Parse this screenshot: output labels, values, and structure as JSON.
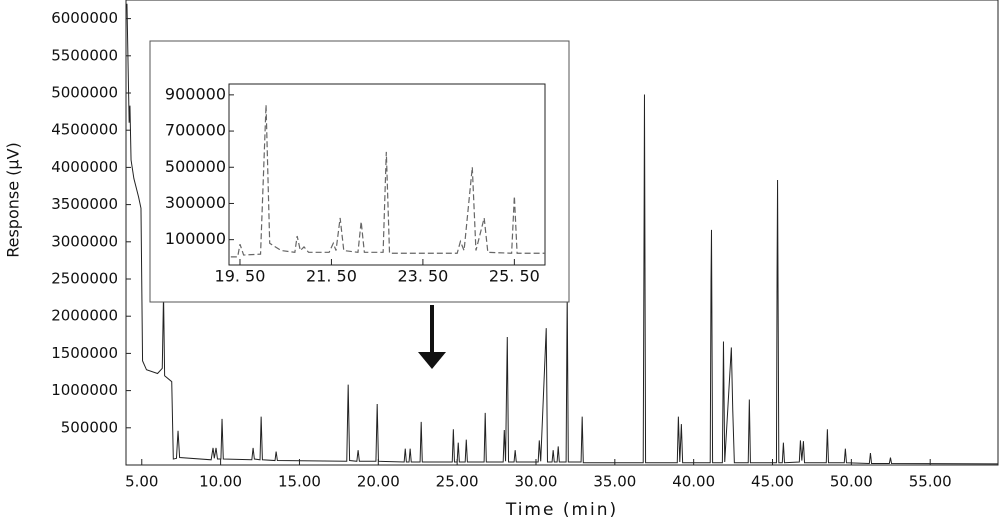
{
  "chart_data": [
    {
      "type": "line",
      "xlabel": "Time (min)",
      "ylabel": "Response (μV)",
      "xlim": [
        4,
        59.3
      ],
      "ylim": [
        0,
        6250000
      ],
      "xticks": [
        {
          "value": 5,
          "label": "5.00"
        },
        {
          "value": 10,
          "label": "10.00"
        },
        {
          "value": 15,
          "label": "15.00"
        },
        {
          "value": 20,
          "label": "20.00"
        },
        {
          "value": 25,
          "label": "25.00"
        },
        {
          "value": 30,
          "label": "30.00"
        },
        {
          "value": 35,
          "label": "35.00"
        },
        {
          "value": 40,
          "label": "40.00"
        },
        {
          "value": 45,
          "label": "45.00"
        },
        {
          "value": 50,
          "label": "50.00"
        },
        {
          "value": 55,
          "label": "55.00"
        }
      ],
      "yticks": [
        500000,
        1000000,
        1500000,
        2000000,
        2500000,
        3000000,
        3500000,
        4000000,
        4500000,
        5000000,
        5500000,
        6000000
      ],
      "grid": false,
      "series": [
        {
          "color": "#222222",
          "x": [
            4.06,
            4.2,
            4.25,
            4.32,
            4.5,
            4.8,
            4.95,
            5.05,
            5.3,
            6.0,
            6.3,
            6.38,
            6.45,
            6.9,
            7.0,
            7.2,
            7.3,
            7.4,
            9.4,
            9.52,
            9.6,
            9.71,
            9.8,
            10.02,
            10.09,
            10.17,
            11.98,
            12.06,
            12.14,
            12.5,
            12.57,
            12.65,
            13.45,
            13.52,
            13.6,
            18.0,
            18.09,
            18.18,
            18.64,
            18.72,
            18.8,
            19.85,
            19.93,
            20.01,
            21.64,
            21.71,
            21.78,
            21.95,
            22.02,
            22.09,
            22.65,
            22.72,
            22.79,
            24.69,
            24.76,
            24.83,
            25.0,
            25.07,
            25.14,
            25.51,
            25.58,
            25.65,
            26.71,
            26.78,
            26.85,
            27.92,
            27.99,
            28.07,
            28.18,
            28.26,
            28.61,
            28.68,
            28.75,
            30.14,
            30.21,
            30.3,
            30.65,
            30.73,
            31.02,
            31.09,
            31.16,
            31.34,
            31.41,
            31.48,
            31.91,
            31.98,
            32.05,
            32.86,
            32.93,
            33.0,
            36.8,
            36.86,
            36.88,
            36.95,
            38.96,
            39.03,
            39.12,
            39.22,
            39.3,
            41.05,
            41.1,
            41.13,
            41.2,
            41.82,
            41.89,
            41.97,
            42.39,
            42.48,
            42.58,
            43.46,
            43.53,
            43.6,
            45.25,
            45.29,
            45.32,
            45.4,
            45.62,
            45.69,
            45.76,
            46.7,
            46.77,
            46.86,
            46.96,
            47.03,
            48.41,
            48.48,
            48.55,
            49.55,
            49.62,
            49.69,
            51.14,
            51.21,
            51.28,
            52.41,
            52.48,
            52.55,
            59.3
          ],
          "values": [
            6200000,
            4600000,
            4830000,
            4100000,
            3850000,
            3600000,
            3450000,
            1400000,
            1280000,
            1230000,
            1300000,
            2300000,
            1200000,
            1120000,
            80000,
            90000,
            460000,
            100000,
            70000,
            230000,
            90000,
            230000,
            80000,
            80000,
            620000,
            80000,
            70000,
            230000,
            80000,
            70000,
            650000,
            70000,
            60000,
            180000,
            60000,
            50000,
            1080000,
            60000,
            50000,
            200000,
            50000,
            50000,
            820000,
            50000,
            40000,
            220000,
            40000,
            40000,
            220000,
            40000,
            40000,
            580000,
            40000,
            40000,
            480000,
            40000,
            40000,
            300000,
            40000,
            40000,
            340000,
            40000,
            40000,
            700000,
            40000,
            40000,
            470000,
            50000,
            1720000,
            40000,
            40000,
            200000,
            40000,
            40000,
            330000,
            50000,
            1840000,
            40000,
            40000,
            200000,
            40000,
            40000,
            250000,
            40000,
            40000,
            2300000,
            40000,
            40000,
            650000,
            30000,
            30000,
            3500000,
            4980000,
            30000,
            30000,
            650000,
            40000,
            550000,
            30000,
            30000,
            2470000,
            3160000,
            30000,
            30000,
            1660000,
            40000,
            1580000,
            730000,
            30000,
            30000,
            880000,
            30000,
            30000,
            2600000,
            3830000,
            30000,
            30000,
            300000,
            30000,
            40000,
            330000,
            60000,
            320000,
            30000,
            30000,
            480000,
            30000,
            30000,
            220000,
            30000,
            20000,
            160000,
            20000,
            20000,
            100000,
            20000,
            15000
          ]
        }
      ]
    },
    {
      "type": "line",
      "xlim": [
        19.26,
        26.17
      ],
      "ylim": [
        -40000,
        960000
      ],
      "xticks": [
        {
          "value": 19.5,
          "label": "19. 50"
        },
        {
          "value": 21.5,
          "label": "21. 50"
        },
        {
          "value": 23.5,
          "label": "23. 50"
        },
        {
          "value": 25.5,
          "label": "25. 50"
        }
      ],
      "yticks": [
        100000,
        300000,
        500000,
        700000,
        900000
      ],
      "grid": false,
      "series": [
        {
          "color": "#666666",
          "x": [
            19.3,
            19.45,
            19.5,
            19.58,
            19.95,
            20.07,
            20.15,
            20.4,
            20.7,
            20.75,
            20.82,
            20.9,
            21.0,
            21.45,
            21.54,
            21.6,
            21.69,
            21.77,
            22.08,
            22.15,
            22.22,
            22.63,
            22.7,
            22.77,
            24.25,
            24.32,
            24.4,
            24.58,
            24.66,
            24.84,
            24.92,
            25.44,
            25.5,
            25.56,
            26.17
          ],
          "values": [
            5000,
            5000,
            75000,
            15000,
            20000,
            845000,
            80000,
            40000,
            30000,
            120000,
            40000,
            60000,
            30000,
            30000,
            80000,
            40000,
            220000,
            40000,
            30000,
            200000,
            30000,
            30000,
            585000,
            25000,
            25000,
            90000,
            40000,
            500000,
            40000,
            220000,
            30000,
            25000,
            340000,
            25000,
            25000
          ]
        }
      ]
    }
  ]
}
